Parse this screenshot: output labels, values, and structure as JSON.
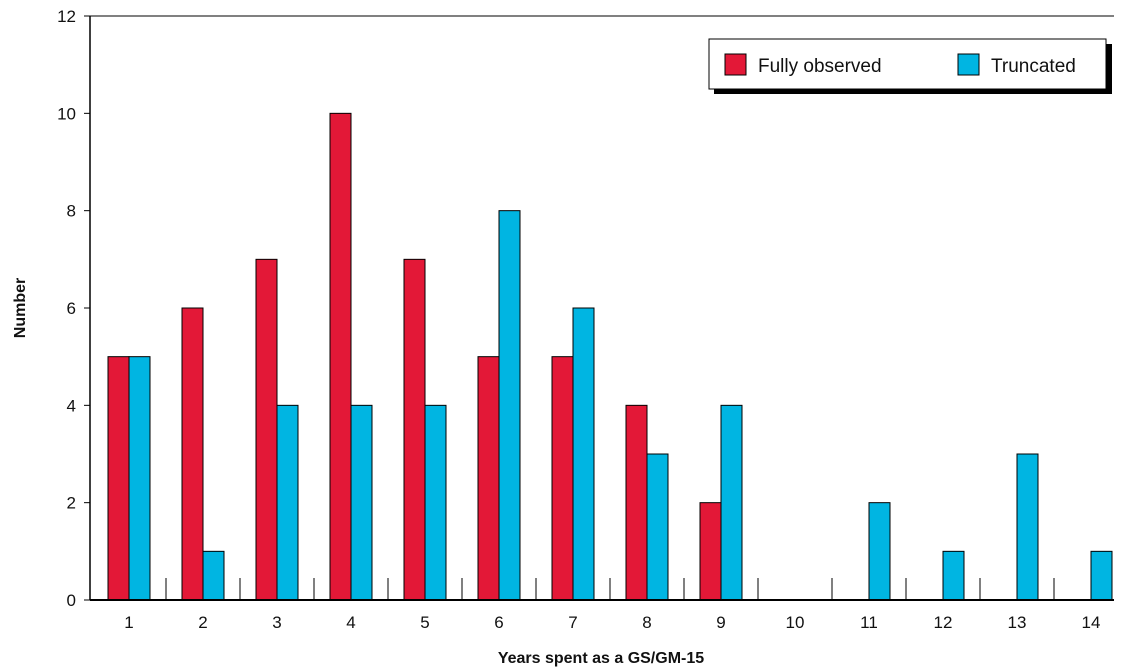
{
  "chart_data": {
    "type": "bar",
    "title": "",
    "xlabel": "Years spent as a GS/GM-15",
    "ylabel": "Number",
    "ylim": [
      0,
      12
    ],
    "yticks": [
      0,
      2,
      4,
      6,
      8,
      10,
      12
    ],
    "categories": [
      "1",
      "2",
      "3",
      "4",
      "5",
      "6",
      "7",
      "8",
      "9",
      "10",
      "11",
      "12",
      "13",
      "14"
    ],
    "series": [
      {
        "name": "Fully observed",
        "color": "#e31837",
        "values": [
          5,
          6,
          7,
          10,
          7,
          5,
          5,
          4,
          2,
          0,
          0,
          0,
          0,
          0
        ]
      },
      {
        "name": "Truncated",
        "color": "#00b5e2",
        "values": [
          5,
          1,
          4,
          4,
          4,
          8,
          6,
          3,
          4,
          0,
          2,
          1,
          3,
          1
        ]
      }
    ],
    "legend_position": "top-right",
    "grid": false
  }
}
